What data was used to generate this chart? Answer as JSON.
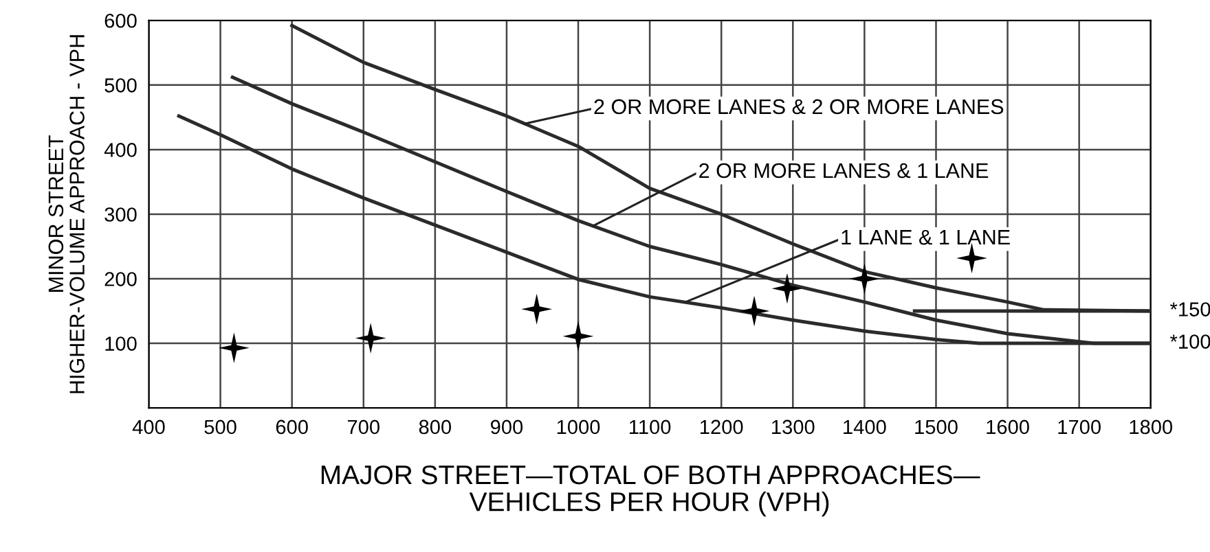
{
  "chart_data": {
    "type": "line",
    "xlabel": "MAJOR STREET—TOTAL OF BOTH APPROACHES—\nVEHICLES PER HOUR (VPH)",
    "ylabel": "MINOR STREET\nHIGHER-VOLUME APPROACH - VPH",
    "xlim": [
      400,
      1800
    ],
    "ylim": [
      0,
      600
    ],
    "xticks": [
      400,
      500,
      600,
      700,
      800,
      900,
      1000,
      1100,
      1200,
      1300,
      1400,
      1500,
      1600,
      1700,
      1800
    ],
    "yticks": [
      100,
      200,
      300,
      400,
      500,
      600
    ],
    "grid": true,
    "line_style": "solid",
    "series": [
      {
        "color": "#2b2b2b",
        "x": [
          600,
          700,
          800,
          900,
          1000,
          1100,
          1200,
          1300,
          1400,
          1500,
          1600,
          1650,
          1800
        ],
        "values": [
          592,
          535,
          493,
          452,
          405,
          340,
          300,
          254,
          211,
          186,
          164,
          152,
          150
        ]
      },
      {
        "color": "#2b2b2b",
        "x": [
          517,
          600,
          700,
          800,
          900,
          1000,
          1100,
          1200,
          1300,
          1400,
          1500,
          1600,
          1720,
          1800
        ],
        "values": [
          512,
          471,
          427,
          381,
          335,
          290,
          250,
          222,
          190,
          164,
          136,
          115,
          100,
          100
        ]
      },
      {
        "color": "#2b2b2b",
        "x": [
          442,
          500,
          600,
          700,
          800,
          900,
          1000,
          1100,
          1200,
          1300,
          1400,
          1500,
          1560,
          1800
        ],
        "values": [
          452,
          423,
          370,
          325,
          283,
          241,
          199,
          172,
          155,
          136,
          119,
          106,
          100,
          100
        ]
      },
      {
        "color": "#2b2b2b",
        "x": [
          1470,
          1800
        ],
        "values": [
          150,
          150
        ]
      },
      {
        "type": "scatter",
        "color": "#000000",
        "marker": "star",
        "x": [
          519,
          710,
          942,
          1000,
          1246,
          1292,
          1400,
          1550
        ],
        "values": [
          93,
          108,
          153,
          111,
          150,
          185,
          200,
          232
        ]
      }
    ],
    "annotations": [
      {
        "text": "2 OR MORE LANES & 2 OR MORE LANES",
        "x": 925,
        "y": 440
      },
      {
        "text": "2 OR MORE LANES & 1 LANE",
        "x": 1021,
        "y": 282
      },
      {
        "text": "1 LANE & 1 LANE",
        "x": 1150,
        "y": 164
      },
      {
        "text": "*150",
        "x": 1800,
        "y": 150
      },
      {
        "text": "*100",
        "x": 1800,
        "y": 100
      }
    ]
  }
}
